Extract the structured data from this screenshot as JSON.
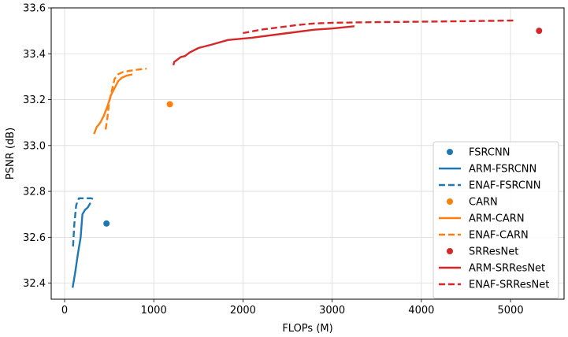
{
  "chart_data": {
    "type": "line",
    "title": "",
    "xlabel": "FLOPs (M)",
    "ylabel": "PSNR (dB)",
    "xlim": [
      -150,
      5600
    ],
    "ylim": [
      32.33,
      33.6
    ],
    "xticks": [
      0,
      1000,
      2000,
      3000,
      4000,
      5000
    ],
    "yticks": [
      32.4,
      32.6,
      32.8,
      33.0,
      33.2,
      33.4,
      33.6
    ],
    "xtick_labels": [
      "0",
      "1000",
      "2000",
      "3000",
      "4000",
      "5000"
    ],
    "ytick_labels": [
      "32.4",
      "32.6",
      "32.8",
      "33.0",
      "33.2",
      "33.4",
      "33.6"
    ],
    "grid": true,
    "legend_position": "lower-right",
    "series": [
      {
        "name": "FSRCNN",
        "kind": "point",
        "color": "#1f77b4",
        "x": [
          470
        ],
        "y": [
          32.66
        ]
      },
      {
        "name": "ARM-FSRCNN",
        "kind": "solid",
        "color": "#1f77b4",
        "x": [
          90,
          120,
          150,
          180,
          200,
          230,
          260,
          290
        ],
        "y": [
          32.38,
          32.45,
          32.53,
          32.6,
          32.7,
          32.72,
          32.73,
          32.75
        ]
      },
      {
        "name": "ENAF-FSRCNN",
        "kind": "dashed",
        "color": "#1f77b4",
        "x": [
          95,
          110,
          130,
          160,
          200,
          250,
          300,
          330
        ],
        "y": [
          32.56,
          32.66,
          32.74,
          32.77,
          32.77,
          32.77,
          32.77,
          32.765
        ]
      },
      {
        "name": "CARN",
        "kind": "point",
        "color": "#ff7f0e",
        "x": [
          1180
        ],
        "y": [
          33.18
        ]
      },
      {
        "name": "ARM-CARN",
        "kind": "solid",
        "color": "#ff7f0e",
        "x": [
          330,
          360,
          400,
          440,
          480,
          520,
          560,
          600,
          640,
          700,
          760
        ],
        "y": [
          33.05,
          33.08,
          33.1,
          33.13,
          33.17,
          33.22,
          33.25,
          33.28,
          33.295,
          33.305,
          33.31
        ]
      },
      {
        "name": "ENAF-CARN",
        "kind": "dashed",
        "color": "#ff7f0e",
        "x": [
          460,
          480,
          500,
          530,
          560,
          600,
          650,
          720,
          800,
          870,
          920
        ],
        "y": [
          33.07,
          33.12,
          33.19,
          33.24,
          33.29,
          33.31,
          33.32,
          33.325,
          33.33,
          33.333,
          33.335
        ]
      },
      {
        "name": "SRResNet",
        "kind": "point",
        "color": "#d62728",
        "x": [
          5320
        ],
        "y": [
          33.5
        ]
      },
      {
        "name": "ARM-SRResNet",
        "kind": "solid",
        "color": "#d62728",
        "x": [
          1220,
          1230,
          1250,
          1300,
          1350,
          1400,
          1500,
          1650,
          1830,
          2100,
          2400,
          2800,
          3000,
          3250
        ],
        "y": [
          33.35,
          33.365,
          33.37,
          33.385,
          33.39,
          33.405,
          33.425,
          33.44,
          33.46,
          33.47,
          33.485,
          33.505,
          33.51,
          33.52
        ]
      },
      {
        "name": "ENAF-SRResNet",
        "kind": "dashed",
        "color": "#d62728",
        "x": [
          2000,
          2200,
          2400,
          2600,
          2800,
          3000,
          3500,
          4000,
          4500,
          5060
        ],
        "y": [
          33.49,
          33.505,
          33.515,
          33.525,
          33.532,
          33.535,
          33.538,
          33.54,
          33.542,
          33.545
        ]
      }
    ]
  }
}
